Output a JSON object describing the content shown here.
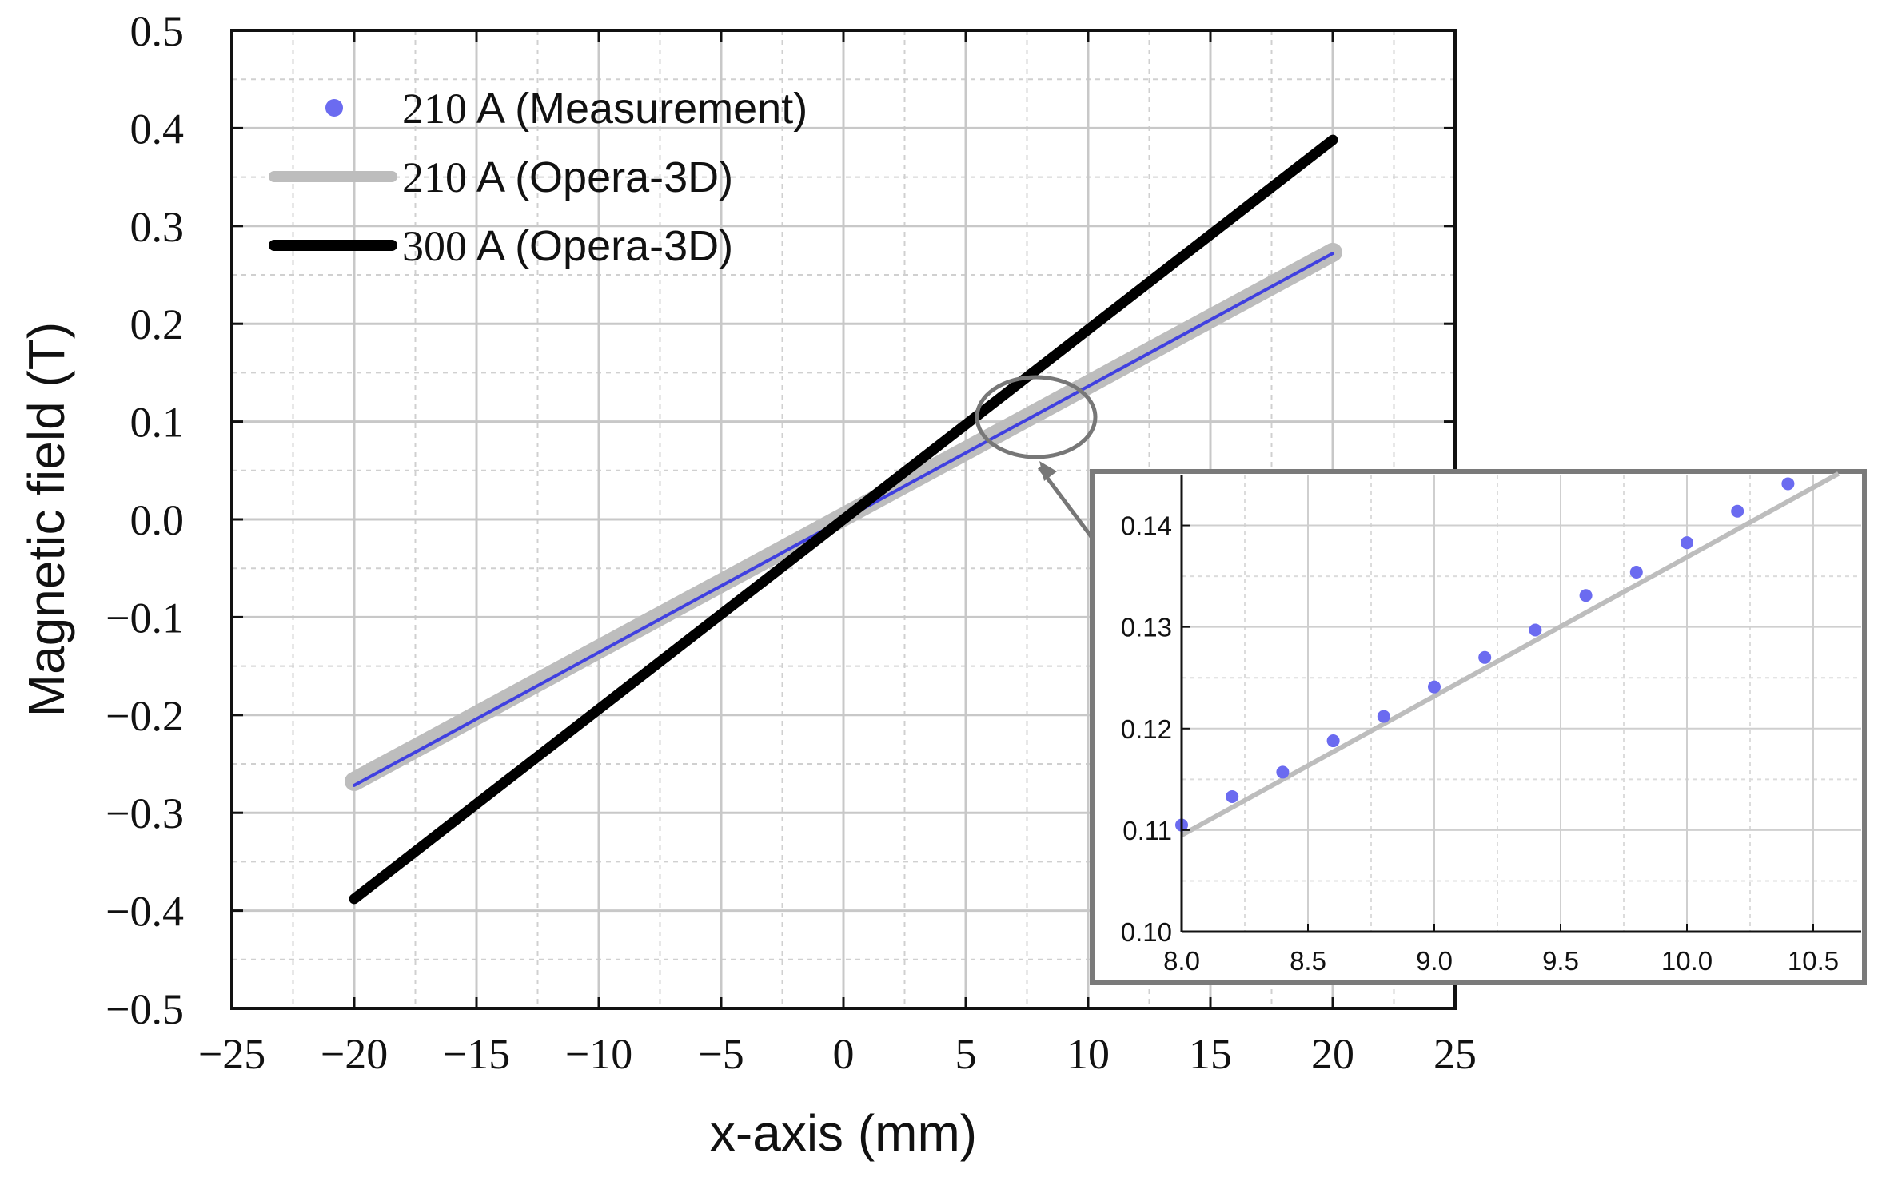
{
  "chart_data": [
    {
      "type": "line",
      "name": "main",
      "xlabel": "x-axis (mm)",
      "ylabel": "Magnetic field (T)",
      "xlim": [
        -25,
        25
      ],
      "ylim": [
        -0.5,
        0.5
      ],
      "xticks": [
        -25,
        -20,
        -15,
        -10,
        -5,
        0,
        5,
        10,
        15,
        20,
        25
      ],
      "yticks": [
        0.5,
        0.4,
        0.3,
        0.2,
        0.1,
        0.0,
        -0.1,
        -0.2,
        -0.3,
        -0.4,
        -0.5
      ],
      "xtick_labels": [
        "−25",
        "−20",
        "−15",
        "−10",
        "−5",
        "0",
        "5",
        "10",
        "15",
        "20",
        "25"
      ],
      "ytick_labels": [
        "0.5",
        "0.4",
        "0.3",
        "0.2",
        "0.1",
        "0.0",
        "−0.1",
        "−0.2",
        "−0.3",
        "−0.4",
        "−0.5"
      ],
      "grid": true,
      "legend_position": "top-left",
      "series": [
        {
          "name": "210 A (Measurement)",
          "label_num": "210",
          "label_rest": " A (Measurement)",
          "kind": "scatter",
          "color": "#6b6bf0",
          "x": [
            -20,
            20
          ],
          "y": [
            -0.272,
            0.272
          ]
        },
        {
          "name": "210 A (Opera-3D)",
          "label_num": "210",
          "label_rest": " A (Opera-3D)",
          "kind": "line",
          "color": "#bdbdbd",
          "x": [
            -20,
            20
          ],
          "y": [
            -0.268,
            0.273
          ]
        },
        {
          "name": "300 A (Opera-3D)",
          "label_num": "300",
          "label_rest": " A (Opera-3D)",
          "kind": "line",
          "color": "#000000",
          "x": [
            -20,
            20
          ],
          "y": [
            -0.388,
            0.388
          ]
        }
      ]
    },
    {
      "type": "scatter",
      "name": "inset",
      "xlim": [
        8.0,
        10.6
      ],
      "ylim": [
        0.1,
        0.145
      ],
      "xticks": [
        8.0,
        8.5,
        9.0,
        9.5,
        10.0,
        10.5
      ],
      "yticks": [
        0.1,
        0.11,
        0.12,
        0.13,
        0.14
      ],
      "xtick_labels": [
        "8.0",
        "8.5",
        "9.0",
        "9.5",
        "10.0",
        "10.5"
      ],
      "ytick_labels": [
        "0.10",
        "0.11",
        "0.12",
        "0.13",
        "0.14"
      ],
      "grid": true,
      "series": [
        {
          "name": "210 A (Measurement)",
          "kind": "scatter",
          "color": "#6b6bf0",
          "x": [
            8.0,
            8.2,
            8.4,
            8.6,
            8.8,
            9.0,
            9.2,
            9.4,
            9.6,
            9.8,
            10.0,
            10.2,
            10.4
          ],
          "y": [
            0.1105,
            0.1133,
            0.1157,
            0.1188,
            0.1212,
            0.1241,
            0.127,
            0.1297,
            0.1331,
            0.1354,
            0.1383,
            0.1414,
            0.1441
          ]
        },
        {
          "name": "210 A (Opera-3D)",
          "kind": "line",
          "color": "#bdbdbd",
          "x": [
            8.0,
            10.6
          ],
          "y": [
            0.1095,
            0.1451
          ]
        }
      ]
    }
  ]
}
